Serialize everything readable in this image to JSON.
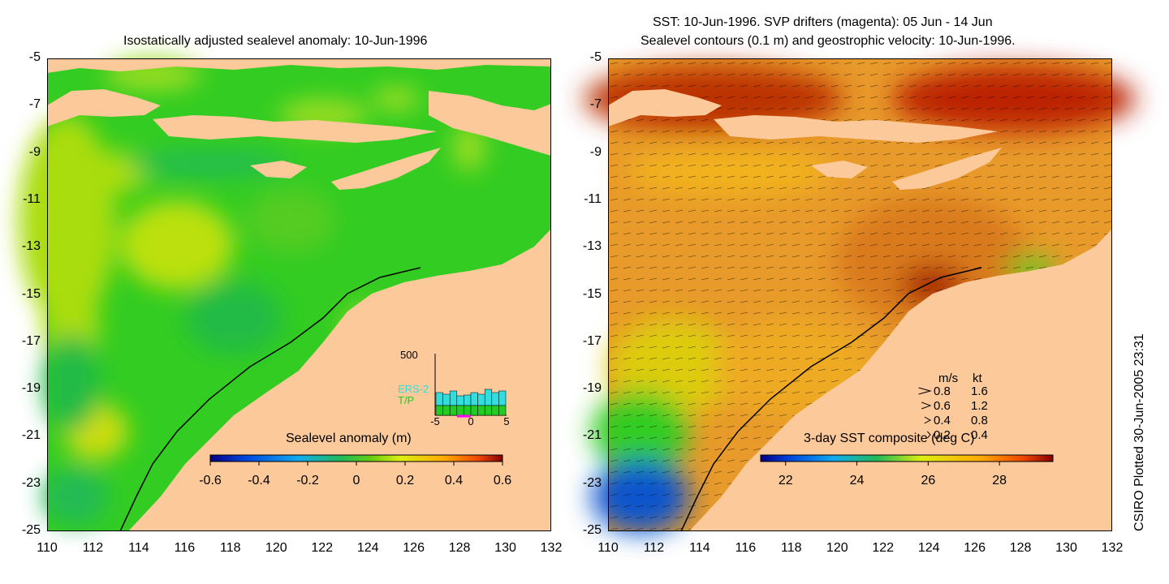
{
  "left_panel": {
    "title": "Isostatically adjusted sealevel anomaly: 10-Jun-1996",
    "colorbar": {
      "label": "Sealevel anomaly (m)",
      "ticks": [
        "-0.6",
        "-0.4",
        "-0.2",
        "0",
        "0.2",
        "0.4",
        "0.6"
      ],
      "range": [
        -0.6,
        0.6
      ]
    },
    "inset": {
      "y_max_label": "500",
      "x_ticks": [
        "-5",
        "0",
        "5"
      ],
      "series": [
        {
          "name": "ERS-2",
          "color": "#33dddd"
        },
        {
          "name": "T/P",
          "color": "#22cc22"
        }
      ]
    }
  },
  "right_panel": {
    "title_line1": "SST: 10-Jun-1996. SVP drifters (magenta): 05 Jun - 14 Jun",
    "title_line2": "Sealevel contours (0.1 m) and geostrophic velocity: 10-Jun-1996.",
    "colorbar": {
      "label": "3-day SST composite (deg C)",
      "ticks": [
        "22",
        "24",
        "26",
        "28"
      ],
      "range": [
        21.3,
        29.5
      ]
    },
    "velocity_legend": {
      "header_ms": "m/s",
      "header_kt": "kt",
      "rows": [
        {
          "ms": "0.8",
          "kt": "1.6"
        },
        {
          "ms": "0.6",
          "kt": "1.2"
        },
        {
          "ms": "0.4",
          "kt": "0.8"
        },
        {
          "ms": "0.2",
          "kt": "0.4"
        }
      ]
    }
  },
  "axes": {
    "lat_ticks": [
      "-5",
      "-7",
      "-9",
      "-11",
      "-13",
      "-15",
      "-17",
      "-19",
      "-21",
      "-23",
      "-25"
    ],
    "lon_ticks": [
      "110",
      "112",
      "114",
      "116",
      "118",
      "120",
      "122",
      "124",
      "126",
      "128",
      "130",
      "132"
    ],
    "lat_range": [
      -25,
      -5
    ],
    "lon_range": [
      110,
      132
    ]
  },
  "credit": "CSIRO Plotted 30-Jun-2005 23:31",
  "colors": {
    "land": "#fcc99b",
    "ocean_mid": "#33cc22",
    "sst_warm": "#e89a2a"
  }
}
